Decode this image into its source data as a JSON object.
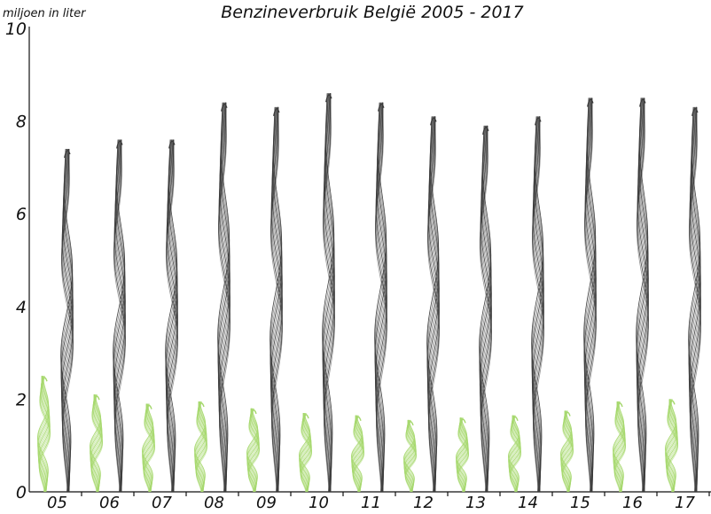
{
  "chart_data": {
    "type": "bar",
    "title": "Benzineverbruik België 2005 - 2017",
    "ylabel": "miljoen in liter",
    "xlabel": "",
    "ylim": [
      0,
      10
    ],
    "yticks": [
      "0",
      "2",
      "4",
      "6",
      "8",
      "10"
    ],
    "categories": [
      "05",
      "06",
      "07",
      "08",
      "09",
      "10",
      "11",
      "12",
      "13",
      "14",
      "15",
      "16",
      "17"
    ],
    "series": [
      {
        "color": "#a6d86e",
        "values": [
          2.5,
          2.1,
          1.9,
          1.95,
          1.8,
          1.7,
          1.65,
          1.55,
          1.6,
          1.65,
          1.75,
          1.95,
          2.0
        ]
      },
      {
        "color": "#3a3a3a",
        "values": [
          7.4,
          7.6,
          7.6,
          8.4,
          8.3,
          8.6,
          8.4,
          8.1,
          7.9,
          8.1,
          8.5,
          8.5,
          8.3
        ]
      }
    ],
    "grid": false,
    "legend": "none"
  }
}
